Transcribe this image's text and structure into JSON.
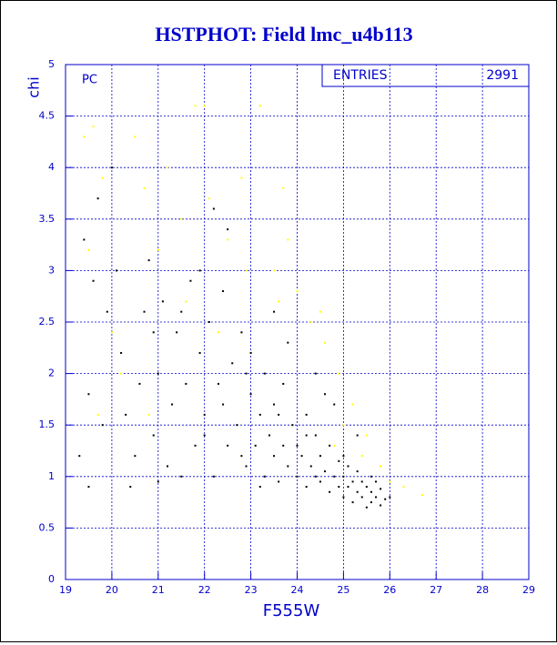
{
  "chart_data": {
    "type": "scatter",
    "title": "HSTPHOT: Field lmc_u4b113",
    "xlabel": "F555W",
    "ylabel": "chi",
    "panel_label": "PC",
    "stats": {
      "label": "ENTRIES",
      "value": 2991
    },
    "xlim": [
      19,
      29
    ],
    "ylim": [
      0,
      5
    ],
    "xticks": [
      19,
      20,
      21,
      22,
      23,
      24,
      25,
      26,
      27,
      28,
      29
    ],
    "yticks": [
      0,
      0.5,
      1,
      1.5,
      2,
      2.5,
      3,
      3.5,
      4,
      4.5,
      5
    ],
    "grid": true,
    "grid_color": "#0000cc",
    "series": [
      {
        "color": "#000000",
        "x": [
          19.3,
          19.5,
          19.6,
          19.4,
          19.8,
          19.9,
          20.1,
          20.3,
          20.2,
          20.4,
          20.6,
          20.7,
          20.9,
          20.8,
          21.0,
          21.1,
          21.2,
          21.3,
          21.4,
          21.5,
          21.6,
          21.7,
          21.8,
          21.9,
          22.0,
          22.1,
          22.2,
          22.3,
          22.4,
          22.5,
          22.6,
          22.7,
          22.8,
          22.9,
          23.0,
          23.0,
          23.1,
          23.2,
          23.3,
          23.3,
          23.4,
          23.5,
          23.5,
          23.6,
          23.7,
          23.7,
          23.8,
          23.9,
          24.0,
          24.0,
          24.1,
          24.2,
          24.2,
          24.3,
          24.4,
          24.4,
          24.5,
          24.5,
          24.6,
          24.7,
          24.7,
          24.8,
          24.9,
          24.9,
          25.0,
          25.0,
          25.1,
          25.1,
          25.2,
          25.2,
          25.3,
          25.3,
          25.4,
          25.4,
          25.5,
          25.5,
          25.6,
          25.6,
          25.7,
          25.7,
          25.8,
          25.8,
          25.9,
          22.5,
          21.9,
          20.0,
          19.7,
          23.5,
          24.4,
          24.8,
          25.3,
          22.8,
          23.2,
          21.5,
          22.2,
          23.8,
          24.6,
          22.0,
          22.4,
          22.9,
          23.6,
          24.2,
          25.0,
          25.6,
          26.0,
          19.5,
          20.5,
          21.0,
          20.9
        ],
        "y": [
          1.2,
          1.8,
          2.9,
          3.3,
          1.5,
          2.6,
          3.0,
          1.6,
          2.2,
          0.9,
          1.9,
          2.6,
          1.4,
          3.1,
          2.0,
          2.7,
          1.1,
          1.7,
          2.4,
          1.0,
          1.9,
          2.9,
          1.3,
          2.2,
          1.6,
          2.5,
          1.0,
          1.9,
          2.8,
          1.3,
          2.1,
          1.5,
          2.4,
          1.1,
          1.8,
          2.2,
          1.3,
          1.6,
          1.0,
          2.0,
          1.4,
          1.2,
          1.7,
          0.95,
          1.3,
          1.9,
          1.1,
          1.5,
          1.0,
          1.3,
          1.2,
          0.9,
          1.6,
          1.1,
          1.0,
          1.4,
          0.95,
          1.2,
          1.05,
          0.85,
          1.3,
          1.0,
          0.9,
          1.15,
          0.8,
          1.0,
          0.9,
          1.1,
          0.75,
          0.95,
          0.85,
          1.05,
          0.8,
          0.95,
          0.7,
          0.9,
          0.85,
          0.75,
          0.8,
          0.95,
          0.72,
          0.88,
          0.78,
          3.4,
          3.0,
          4.0,
          3.7,
          2.6,
          2.0,
          1.7,
          1.4,
          1.2,
          0.9,
          2.6,
          3.6,
          2.3,
          1.8,
          1.4,
          1.7,
          2.0,
          1.6,
          1.4,
          1.2,
          1.0,
          0.8,
          0.9,
          1.2,
          0.95,
          2.4
        ]
      },
      {
        "color": "#ffff00",
        "x": [
          19.4,
          19.6,
          19.8,
          19.5,
          20.5,
          20.7,
          21.0,
          21.2,
          21.5,
          21.8,
          22.1,
          22.5,
          22.8,
          23.2,
          23.5,
          23.7,
          24.0,
          24.3,
          24.6,
          24.9,
          25.2,
          25.5,
          25.8,
          26.0,
          26.3,
          26.7,
          20.2,
          20.8,
          21.6,
          22.3,
          22.9,
          23.8,
          24.5,
          25.0,
          25.4,
          20.0,
          19.7,
          22.0,
          23.6,
          24.8
        ],
        "y": [
          4.3,
          4.4,
          3.9,
          3.2,
          4.3,
          3.8,
          3.2,
          4.0,
          3.5,
          4.6,
          3.7,
          3.3,
          3.9,
          4.6,
          3.0,
          3.8,
          2.8,
          2.5,
          2.3,
          2.0,
          1.7,
          1.4,
          1.1,
          0.95,
          0.9,
          0.82,
          2.0,
          1.6,
          2.7,
          2.4,
          3.0,
          3.3,
          2.6,
          1.5,
          1.2,
          2.4,
          1.6,
          4.6,
          2.7,
          1.3
        ]
      }
    ]
  }
}
